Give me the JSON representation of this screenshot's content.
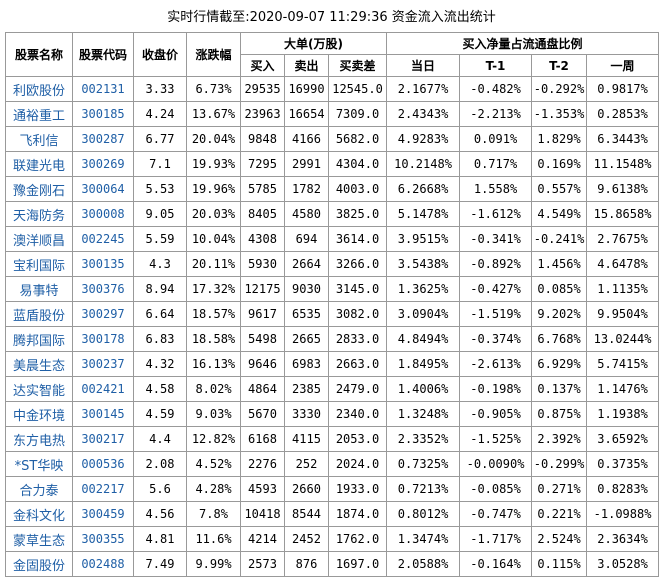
{
  "title": "实时行情截至:2020-09-07 11:29:36 资金流入流出统计",
  "header": {
    "name": "股票名称",
    "code": "股票代码",
    "price": "收盘价",
    "change": "涨跌幅",
    "big": "大单(万股)",
    "big_sub": [
      "买入",
      "卖出",
      "买卖差"
    ],
    "ratio": "买入净量占流通盘比例",
    "ratio_sub": [
      "当日",
      "T-1",
      "T-2",
      "一周"
    ]
  },
  "table": {
    "rows": [
      [
        "利欧股份",
        "002131",
        "3.33",
        "6.73%",
        "29535",
        "16990",
        "12545.0",
        "2.1677%",
        "-0.482%",
        "-0.292%",
        "0.9817%"
      ],
      [
        "通裕重工",
        "300185",
        "4.24",
        "13.67%",
        "23963",
        "16654",
        "7309.0",
        "2.4343%",
        "-2.213%",
        "-1.353%",
        "0.2853%"
      ],
      [
        "飞利信",
        "300287",
        "6.77",
        "20.04%",
        "9848",
        "4166",
        "5682.0",
        "4.9283%",
        "0.091%",
        "1.829%",
        "6.3443%"
      ],
      [
        "联建光电",
        "300269",
        "7.1",
        "19.93%",
        "7295",
        "2991",
        "4304.0",
        "10.2148%",
        "0.717%",
        "0.169%",
        "11.1548%"
      ],
      [
        "豫金刚石",
        "300064",
        "5.53",
        "19.96%",
        "5785",
        "1782",
        "4003.0",
        "6.2668%",
        "1.558%",
        "0.557%",
        "9.6138%"
      ],
      [
        "天海防务",
        "300008",
        "9.05",
        "20.03%",
        "8405",
        "4580",
        "3825.0",
        "5.1478%",
        "-1.612%",
        "4.549%",
        "15.8658%"
      ],
      [
        "澳洋顺昌",
        "002245",
        "5.59",
        "10.04%",
        "4308",
        "694",
        "3614.0",
        "3.9515%",
        "-0.341%",
        "-0.241%",
        "2.7675%"
      ],
      [
        "宝利国际",
        "300135",
        "4.3",
        "20.11%",
        "5930",
        "2664",
        "3266.0",
        "3.5438%",
        "-0.892%",
        "1.456%",
        "4.6478%"
      ],
      [
        "易事特",
        "300376",
        "8.94",
        "17.32%",
        "12175",
        "9030",
        "3145.0",
        "1.3625%",
        "-0.427%",
        "0.085%",
        "1.1135%"
      ],
      [
        "蓝盾股份",
        "300297",
        "6.64",
        "18.57%",
        "9617",
        "6535",
        "3082.0",
        "3.0904%",
        "-1.519%",
        "9.202%",
        "9.9504%"
      ],
      [
        "腾邦国际",
        "300178",
        "6.83",
        "18.58%",
        "5498",
        "2665",
        "2833.0",
        "4.8494%",
        "-0.374%",
        "6.768%",
        "13.0244%"
      ],
      [
        "美晨生态",
        "300237",
        "4.32",
        "16.13%",
        "9646",
        "6983",
        "2663.0",
        "1.8495%",
        "-2.613%",
        "6.929%",
        "5.7415%"
      ],
      [
        "达实智能",
        "002421",
        "4.58",
        "8.02%",
        "4864",
        "2385",
        "2479.0",
        "1.4006%",
        "-0.198%",
        "0.137%",
        "1.1476%"
      ],
      [
        "中金环境",
        "300145",
        "4.59",
        "9.03%",
        "5670",
        "3330",
        "2340.0",
        "1.3248%",
        "-0.905%",
        "0.875%",
        "1.1938%"
      ],
      [
        "东方电热",
        "300217",
        "4.4",
        "12.82%",
        "6168",
        "4115",
        "2053.0",
        "2.3352%",
        "-1.525%",
        "2.392%",
        "3.6592%"
      ],
      [
        "*ST华映",
        "000536",
        "2.08",
        "4.52%",
        "2276",
        "252",
        "2024.0",
        "0.7325%",
        "-0.0090%",
        "-0.299%",
        "0.3735%"
      ],
      [
        "合力泰",
        "002217",
        "5.6",
        "4.28%",
        "4593",
        "2660",
        "1933.0",
        "0.7213%",
        "-0.085%",
        "0.271%",
        "0.8283%"
      ],
      [
        "金科文化",
        "300459",
        "4.56",
        "7.8%",
        "10418",
        "8544",
        "1874.0",
        "0.8012%",
        "-0.747%",
        "0.221%",
        "-1.0988%"
      ],
      [
        "蒙草生态",
        "300355",
        "4.81",
        "11.6%",
        "4214",
        "2452",
        "1762.0",
        "1.3474%",
        "-1.717%",
        "2.524%",
        "2.3634%"
      ],
      [
        "金固股份",
        "002488",
        "7.49",
        "9.99%",
        "2573",
        "876",
        "1697.0",
        "2.0588%",
        "-0.164%",
        "0.115%",
        "3.0528%"
      ]
    ]
  }
}
